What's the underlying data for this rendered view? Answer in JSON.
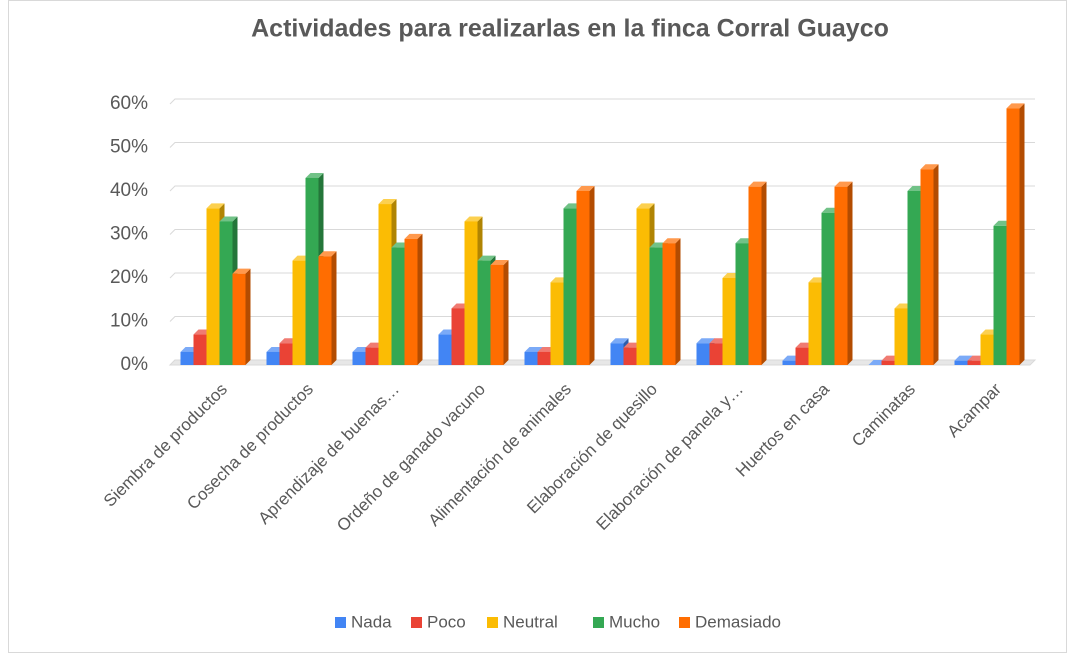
{
  "chart_data": {
    "type": "bar3d",
    "title": "Actividades para realizarlas en la finca Corral Guayco",
    "categories": [
      "Siembra de productos",
      "Cosecha de productos",
      "Aprendizaje de buenas…",
      "Ordeño de ganado vacuno",
      "Alimentación de animales",
      "Elaboración de quesillo",
      "Elaboración de panela y…",
      "Huertos en casa",
      "Caminatas",
      "Acampar"
    ],
    "series": [
      {
        "name": "Nada",
        "color": "#4285f4",
        "values": [
          3,
          3,
          3,
          7,
          3,
          5,
          5,
          1,
          0,
          1
        ]
      },
      {
        "name": "Poco",
        "color": "#ea4335",
        "values": [
          7,
          5,
          4,
          13,
          3,
          4,
          5,
          4,
          1,
          1
        ]
      },
      {
        "name": "Neutral",
        "color": "#fbbc04",
        "values": [
          36,
          24,
          37,
          33,
          19,
          36,
          20,
          19,
          13,
          7
        ]
      },
      {
        "name": "Mucho",
        "color": "#34a853",
        "values": [
          33,
          43,
          27,
          24,
          36,
          27,
          28,
          35,
          40,
          32
        ]
      },
      {
        "name": "Demasiado",
        "color": "#ff6d01",
        "values": [
          21,
          25,
          29,
          23,
          40,
          28,
          41,
          41,
          45,
          59
        ]
      }
    ],
    "ylim": [
      0,
      60
    ],
    "yticks": [
      {
        "value": 0,
        "label": "0%"
      },
      {
        "value": 10,
        "label": "10%"
      },
      {
        "value": 20,
        "label": "20%"
      },
      {
        "value": 30,
        "label": "30%"
      },
      {
        "value": 40,
        "label": "40%"
      },
      {
        "value": 50,
        "label": "50%"
      },
      {
        "value": 60,
        "label": "60%"
      }
    ],
    "grid": true,
    "legend": "bottom"
  }
}
